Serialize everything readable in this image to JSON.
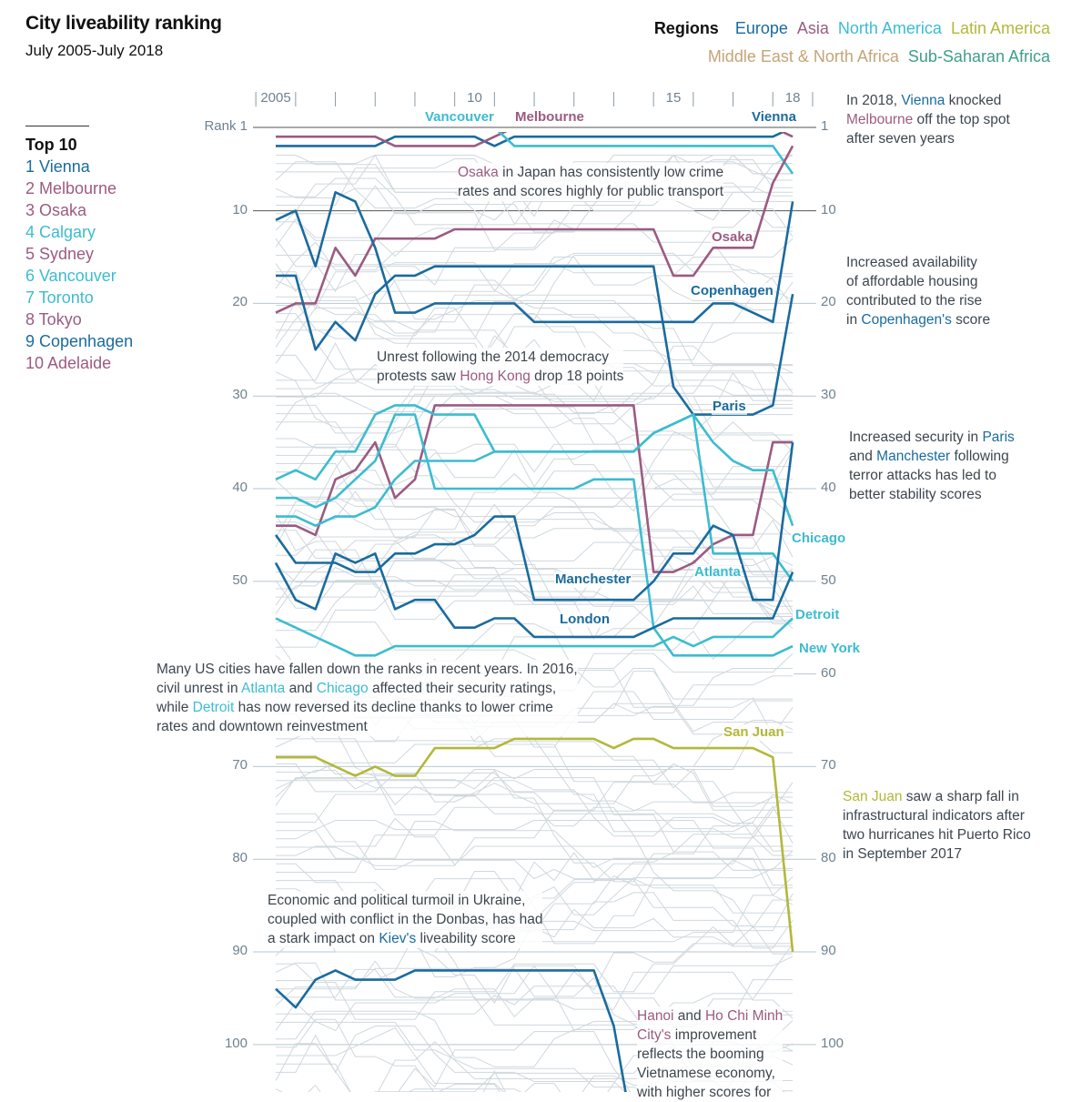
{
  "header": {
    "title": "City liveability ranking",
    "subtitle": "July 2005-July 2018"
  },
  "legend": {
    "title": "Regions",
    "items": [
      {
        "label": "Europe",
        "color": "#1a6b9e"
      },
      {
        "label": "Asia",
        "color": "#9b5b82"
      },
      {
        "label": "North America",
        "color": "#3cbcd0"
      },
      {
        "label": "Latin America",
        "color": "#b3b83a"
      },
      {
        "label": "Middle East & North Africa",
        "color": "#c4a577"
      },
      {
        "label": "Sub-Saharan Africa",
        "color": "#3f9e8c"
      }
    ]
  },
  "top10": {
    "title": "Top 10",
    "items": [
      {
        "label": "1 Vienna",
        "color": "#1a6b9e"
      },
      {
        "label": "2 Melbourne",
        "color": "#9b5b82"
      },
      {
        "label": "3 Osaka",
        "color": "#9b5b82"
      },
      {
        "label": "4 Calgary",
        "color": "#3cbcd0"
      },
      {
        "label": "5 Sydney",
        "color": "#9b5b82"
      },
      {
        "label": "6 Vancouver",
        "color": "#3cbcd0"
      },
      {
        "label": "7 Toronto",
        "color": "#3cbcd0"
      },
      {
        "label": "8 Tokyo",
        "color": "#9b5b82"
      },
      {
        "label": "9 Copenhagen",
        "color": "#1a6b9e"
      },
      {
        "label": "10 Adelaide",
        "color": "#9b5b82"
      }
    ]
  },
  "chart_data": {
    "type": "line",
    "y_reversed": true,
    "ylim": [
      1,
      105
    ],
    "xlim": [
      2005,
      2018
    ],
    "grid": true,
    "x": [
      2005,
      2005.5,
      2006,
      2006.5,
      2007,
      2007.5,
      2008,
      2008.5,
      2009,
      2009.5,
      2010,
      2010.5,
      2011,
      2011.5,
      2012,
      2012.5,
      2013,
      2013.5,
      2014,
      2014.5,
      2015,
      2015.5,
      2016,
      2016.5,
      2017,
      2017.5,
      2018
    ],
    "x_ticks": [
      {
        "year": 2005,
        "label": "2005"
      },
      {
        "year": 2010,
        "label": "10"
      },
      {
        "year": 2015,
        "label": "15"
      },
      {
        "year": 2018,
        "label": "18"
      }
    ],
    "y_ticks_left": [
      {
        "rank": 1,
        "label": "Rank 1"
      },
      {
        "rank": 10,
        "label": "10"
      },
      {
        "rank": 20,
        "label": "20"
      },
      {
        "rank": 30,
        "label": "30"
      },
      {
        "rank": 40,
        "label": "40"
      },
      {
        "rank": 50,
        "label": "50"
      },
      {
        "rank": 70,
        "label": "70"
      },
      {
        "rank": 80,
        "label": "80"
      },
      {
        "rank": 90,
        "label": "90"
      },
      {
        "rank": 100,
        "label": "100"
      }
    ],
    "y_ticks_right": [
      {
        "rank": 1,
        "label": "1"
      },
      {
        "rank": 10,
        "label": "10"
      },
      {
        "rank": 20,
        "label": "20"
      },
      {
        "rank": 30,
        "label": "30"
      },
      {
        "rank": 40,
        "label": "40"
      },
      {
        "rank": 50,
        "label": "50"
      },
      {
        "rank": 60,
        "label": "60"
      },
      {
        "rank": 70,
        "label": "70"
      },
      {
        "rank": 80,
        "label": "80"
      },
      {
        "rank": 90,
        "label": "90"
      },
      {
        "rank": 100,
        "label": "100"
      }
    ],
    "series": [
      {
        "name": "Vienna",
        "color": "#1a6b9e",
        "values": [
          3,
          3,
          3,
          3,
          3,
          3,
          2,
          2,
          2,
          2,
          2,
          3,
          2,
          2,
          2,
          2,
          2,
          2,
          2,
          2,
          2,
          2,
          2,
          2,
          2,
          2,
          1
        ]
      },
      {
        "name": "Melbourne",
        "color": "#9b5b82",
        "values": [
          2,
          2,
          2,
          2,
          2,
          2,
          3,
          3,
          3,
          3,
          3,
          2,
          1,
          1,
          1,
          1,
          1,
          1,
          1,
          1,
          1,
          1,
          1,
          1,
          1,
          1,
          2
        ]
      },
      {
        "name": "Vancouver",
        "color": "#3cbcd0",
        "values": [
          1,
          1,
          1,
          1,
          1,
          1,
          1,
          1,
          1,
          1,
          1,
          1,
          3,
          3,
          3,
          3,
          3,
          3,
          3,
          3,
          3,
          3,
          3,
          3,
          3,
          3,
          6
        ]
      },
      {
        "name": "Osaka",
        "color": "#9b5b82",
        "values": [
          21,
          20,
          20,
          14,
          17,
          13,
          13,
          13,
          13,
          12,
          12,
          12,
          12,
          12,
          12,
          12,
          12,
          12,
          12,
          12,
          17,
          17,
          14,
          14,
          14,
          7,
          3
        ]
      },
      {
        "name": "Copenhagen",
        "color": "#1a6b9e",
        "values": [
          11,
          10,
          16,
          8,
          9,
          14,
          21,
          21,
          20,
          20,
          20,
          20,
          20,
          22,
          22,
          22,
          22,
          22,
          22,
          22,
          22,
          22,
          20,
          20,
          21,
          22,
          9
        ]
      },
      {
        "name": "Paris",
        "color": "#1a6b9e",
        "values": [
          17,
          17,
          25,
          22,
          24,
          19,
          17,
          17,
          16,
          16,
          16,
          16,
          16,
          16,
          16,
          16,
          16,
          16,
          16,
          16,
          29,
          32,
          32,
          32,
          32,
          31,
          19
        ]
      },
      {
        "color": "#9b5b82",
        "values": [
          44,
          44,
          45,
          39,
          38,
          35,
          41,
          39,
          31,
          31,
          31,
          31,
          31,
          31,
          31,
          31,
          31,
          31,
          31,
          49,
          49,
          48,
          46,
          45,
          45,
          35,
          35
        ]
      },
      {
        "name": "Chicago",
        "color": "#3cbcd0",
        "values": [
          39,
          38,
          39,
          36,
          36,
          32,
          31,
          31,
          32,
          32,
          32,
          36,
          36,
          36,
          36,
          36,
          36,
          36,
          36,
          34,
          33,
          32,
          35,
          37,
          38,
          38,
          44
        ]
      },
      {
        "name": "Atlanta",
        "color": "#3cbcd0",
        "values": [
          43,
          43,
          44,
          43,
          43,
          42,
          39,
          37,
          37,
          37,
          37,
          36,
          36,
          36,
          36,
          36,
          36,
          36,
          36,
          34,
          33,
          32,
          47,
          47,
          47,
          47,
          50
        ]
      },
      {
        "name": "New York",
        "color": "#3cbcd0",
        "values": [
          41,
          41,
          42,
          41,
          39,
          37,
          32,
          32,
          40,
          40,
          40,
          40,
          40,
          40,
          40,
          40,
          39,
          39,
          39,
          55,
          58,
          58,
          58,
          58,
          58,
          58,
          57
        ]
      },
      {
        "name": "Detroit",
        "color": "#3cbcd0",
        "values": [
          54,
          55,
          56,
          57,
          58,
          58,
          57,
          57,
          57,
          57,
          57,
          57,
          57,
          57,
          57,
          57,
          57,
          57,
          57,
          57,
          56,
          57,
          56,
          56,
          56,
          56,
          54
        ]
      },
      {
        "name": "Manchester",
        "color": "#1a6b9e",
        "values": [
          45,
          48,
          48,
          48,
          49,
          49,
          47,
          47,
          46,
          46,
          45,
          43,
          43,
          52,
          52,
          52,
          52,
          52,
          52,
          50,
          47,
          47,
          44,
          45,
          52,
          52,
          35
        ]
      },
      {
        "name": "London",
        "color": "#1a6b9e",
        "values": [
          48,
          52,
          53,
          47,
          48,
          47,
          53,
          52,
          52,
          55,
          55,
          54,
          54,
          56,
          56,
          56,
          56,
          56,
          56,
          55,
          54,
          54,
          54,
          54,
          54,
          54,
          49
        ]
      },
      {
        "name": "San Juan",
        "color": "#b3b83a",
        "values": [
          69,
          69,
          69,
          70,
          71,
          70,
          71,
          71,
          68,
          68,
          68,
          68,
          67,
          67,
          67,
          67,
          67,
          68,
          67,
          67,
          68,
          68,
          68,
          68,
          68,
          69,
          90
        ]
      },
      {
        "color": "#1a6b9e",
        "values": [
          94,
          96,
          93,
          92,
          93,
          93,
          93,
          92,
          92,
          92,
          92,
          92,
          92,
          92,
          92,
          92,
          92,
          98,
          110,
          null,
          null,
          null,
          null,
          null,
          null,
          null,
          null
        ]
      }
    ],
    "annotations": [
      {
        "lines": [
          [
            {
              "t": "Osaka",
              "c": "#9b5b82"
            },
            {
              "t": " in Japan has consistently low crime"
            }
          ],
          [
            {
              "t": "rates and scores highly for public transport"
            }
          ]
        ]
      },
      {
        "lines": [
          [
            {
              "t": "Unrest following the 2014 democracy"
            }
          ],
          [
            {
              "t": "protests saw "
            },
            {
              "t": "Hong Kong",
              "c": "#9b5b82"
            },
            {
              "t": " drop 18 points"
            }
          ]
        ]
      },
      {
        "lines": [
          [
            {
              "t": "Many US cities have fallen down the ranks in recent years. In 2016,"
            }
          ],
          [
            {
              "t": "civil unrest in "
            },
            {
              "t": "Atlanta",
              "c": "#3cbcd0"
            },
            {
              "t": " and "
            },
            {
              "t": "Chicago",
              "c": "#3cbcd0"
            },
            {
              "t": " affected their security ratings,"
            }
          ],
          [
            {
              "t": "while "
            },
            {
              "t": "Detroit",
              "c": "#3cbcd0"
            },
            {
              "t": " has now reversed its decline thanks to lower crime"
            }
          ],
          [
            {
              "t": "rates and downtown reinvestment"
            }
          ]
        ]
      },
      {
        "lines": [
          [
            {
              "t": "Economic and political turmoil in Ukraine,"
            }
          ],
          [
            {
              "t": "coupled with conflict in the Donbas, has had"
            }
          ],
          [
            {
              "t": "a stark impact on "
            },
            {
              "t": "Kiev's",
              "c": "#1a6b9e"
            },
            {
              "t": " liveability score"
            }
          ]
        ]
      },
      {
        "lines": [
          [
            {
              "t": "Hanoi",
              "c": "#9b5b82"
            },
            {
              "t": " and "
            },
            {
              "t": "Ho Chi Minh",
              "c": "#9b5b82"
            }
          ],
          [
            {
              "t": "City's",
              "c": "#9b5b82"
            },
            {
              "t": " improvement"
            }
          ],
          [
            {
              "t": "reflects the booming"
            }
          ],
          [
            {
              "t": "Vietnamese economy,"
            }
          ],
          [
            {
              "t": "with higher scores for"
            }
          ]
        ]
      },
      {
        "lines": [
          [
            {
              "t": "In 2018, "
            },
            {
              "t": "Vienna",
              "c": "#1a6b9e"
            },
            {
              "t": " knocked"
            }
          ],
          [
            {
              "t": "Melbourne",
              "c": "#9b5b82"
            },
            {
              "t": " off the top spot"
            }
          ],
          [
            {
              "t": "after seven years"
            }
          ]
        ]
      },
      {
        "lines": [
          [
            {
              "t": "Increased availability"
            }
          ],
          [
            {
              "t": "of affordable housing"
            }
          ],
          [
            {
              "t": "contributed to the rise"
            }
          ],
          [
            {
              "t": "in "
            },
            {
              "t": "Copenhagen's",
              "c": "#1a6b9e"
            },
            {
              "t": " score"
            }
          ]
        ]
      },
      {
        "lines": [
          [
            {
              "t": "Increased security in "
            },
            {
              "t": "Paris",
              "c": "#1a6b9e"
            }
          ],
          [
            {
              "t": "and "
            },
            {
              "t": "Manchester",
              "c": "#1a6b9e"
            },
            {
              "t": " following"
            }
          ],
          [
            {
              "t": "terror attacks has led to"
            }
          ],
          [
            {
              "t": "better stability scores"
            }
          ]
        ]
      },
      {
        "lines": [
          [
            {
              "t": "San Juan",
              "c": "#b3b83a"
            },
            {
              "t": " saw a sharp fall in"
            }
          ],
          [
            {
              "t": "infrastructural indicators after"
            }
          ],
          [
            {
              "t": "two hurricanes hit Puerto Rico"
            }
          ],
          [
            {
              "t": "in September 2017"
            }
          ]
        ]
      }
    ]
  }
}
